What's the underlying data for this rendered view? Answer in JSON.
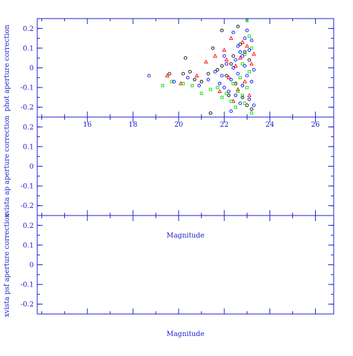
{
  "chart_data": [
    {
      "type": "scatter",
      "panel": "top",
      "title": "",
      "xlabel": "",
      "ylabel": "phot aperture correction",
      "xlim": [
        13.8,
        26.8
      ],
      "ylim": [
        -0.25,
        0.25
      ],
      "x_ticks": [
        16,
        18,
        20,
        22,
        24,
        26
      ],
      "y_ticks": [
        0.2,
        0.1,
        0,
        -0.1,
        -0.2
      ],
      "grid": false,
      "legend": "none",
      "series": [
        {
          "color": "#000000",
          "marker": "circle-open",
          "points": [
            [
              19.6,
              -0.03
            ],
            [
              20.2,
              -0.03
            ],
            [
              20.3,
              0.05
            ],
            [
              20.5,
              -0.02
            ],
            [
              20.7,
              -0.06
            ],
            [
              21.0,
              -0.07
            ],
            [
              21.3,
              -0.03
            ],
            [
              21.5,
              0.1
            ],
            [
              21.7,
              -0.01
            ],
            [
              21.9,
              0.01
            ],
            [
              21.9,
              0.19
            ],
            [
              22.1,
              -0.04
            ],
            [
              22.3,
              0.02
            ],
            [
              22.4,
              0.06
            ],
            [
              22.5,
              -0.08
            ],
            [
              22.6,
              0.21
            ],
            [
              22.7,
              0.12
            ],
            [
              22.8,
              -0.15
            ],
            [
              22.9,
              0.08
            ],
            [
              23.0,
              -0.19
            ],
            [
              23.1,
              0.04
            ],
            [
              23.2,
              -0.21
            ],
            [
              21.4,
              -0.23
            ],
            [
              22.2,
              -0.14
            ]
          ]
        },
        {
          "color": "#ff0000",
          "marker": "triangle-open",
          "points": [
            [
              19.5,
              -0.04
            ],
            [
              20.1,
              -0.08
            ],
            [
              20.8,
              -0.04
            ],
            [
              21.2,
              0.03
            ],
            [
              21.6,
              0.06
            ],
            [
              21.8,
              -0.12
            ],
            [
              22.0,
              0.09
            ],
            [
              22.2,
              -0.05
            ],
            [
              22.3,
              0.15
            ],
            [
              22.4,
              -0.17
            ],
            [
              22.5,
              0.01
            ],
            [
              22.6,
              -0.11
            ],
            [
              22.7,
              0.05
            ],
            [
              22.8,
              0.13
            ],
            [
              22.9,
              -0.07
            ],
            [
              23.0,
              0.11
            ],
            [
              23.1,
              -0.14
            ],
            [
              23.2,
              0.02
            ],
            [
              23.3,
              0.07
            ],
            [
              22.1,
              0.04
            ]
          ]
        },
        {
          "color": "#00dd00",
          "marker": "square-open",
          "points": [
            [
              19.3,
              -0.09
            ],
            [
              19.7,
              -0.07
            ],
            [
              20.2,
              -0.08
            ],
            [
              20.6,
              -0.09
            ],
            [
              21.0,
              -0.13
            ],
            [
              21.4,
              -0.11
            ],
            [
              21.7,
              -0.1
            ],
            [
              21.9,
              -0.15
            ],
            [
              22.1,
              -0.13
            ],
            [
              22.3,
              -0.17
            ],
            [
              22.4,
              -0.08
            ],
            [
              22.5,
              -0.2
            ],
            [
              22.6,
              -0.12
            ],
            [
              22.7,
              -0.05
            ],
            [
              22.8,
              0.02
            ],
            [
              22.9,
              0.07
            ],
            [
              23.0,
              0.24
            ],
            [
              23.1,
              0.16
            ],
            [
              23.2,
              0.1
            ],
            [
              23.2,
              -0.23
            ],
            [
              22.9,
              -0.18
            ],
            [
              23.0,
              -0.1
            ],
            [
              22.8,
              -0.14
            ],
            [
              23.1,
              -0.02
            ]
          ]
        },
        {
          "color": "#0000ff",
          "marker": "circle-open",
          "points": [
            [
              18.7,
              -0.04
            ],
            [
              19.8,
              -0.07
            ],
            [
              20.4,
              -0.05
            ],
            [
              20.9,
              -0.09
            ],
            [
              21.3,
              -0.06
            ],
            [
              21.6,
              -0.02
            ],
            [
              21.8,
              -0.08
            ],
            [
              22.0,
              -0.1
            ],
            [
              22.1,
              0.02
            ],
            [
              22.2,
              -0.12
            ],
            [
              22.3,
              -0.06
            ],
            [
              22.4,
              0.0
            ],
            [
              22.5,
              0.04
            ],
            [
              22.5,
              -0.14
            ],
            [
              22.6,
              -0.03
            ],
            [
              22.7,
              0.08
            ],
            [
              22.7,
              -0.18
            ],
            [
              22.8,
              0.06
            ],
            [
              22.8,
              -0.09
            ],
            [
              22.9,
              0.01
            ],
            [
              22.9,
              0.15
            ],
            [
              23.0,
              -0.04
            ],
            [
              23.0,
              0.19
            ],
            [
              23.1,
              -0.16
            ],
            [
              23.1,
              0.09
            ],
            [
              23.2,
              -0.07
            ],
            [
              23.2,
              0.14
            ],
            [
              23.3,
              -0.01
            ],
            [
              23.3,
              -0.19
            ],
            [
              22.3,
              -0.22
            ],
            [
              22.6,
              0.11
            ],
            [
              22.4,
              0.18
            ],
            [
              22.0,
              0.06
            ],
            [
              21.9,
              -0.04
            ]
          ]
        }
      ]
    },
    {
      "type": "scatter",
      "panel": "middle",
      "title": "",
      "xlabel": "",
      "ylabel": "xvista ap aperture correction",
      "ylim": [
        -0.25,
        0.25
      ],
      "y_ticks": [
        0.2,
        0.1,
        0,
        -0.1,
        -0.2
      ],
      "grid": false,
      "legend": "none",
      "series": []
    },
    {
      "type": "scatter",
      "panel": "bottom",
      "title": "Magnitude",
      "xlabel": "Magnitude",
      "ylabel": "xvista psf aperture correction",
      "ylim": [
        -0.25,
        0.25
      ],
      "y_ticks": [
        0.2,
        0.1,
        0,
        -0.1,
        -0.2
      ],
      "grid": false,
      "legend": "none",
      "series": []
    }
  ]
}
